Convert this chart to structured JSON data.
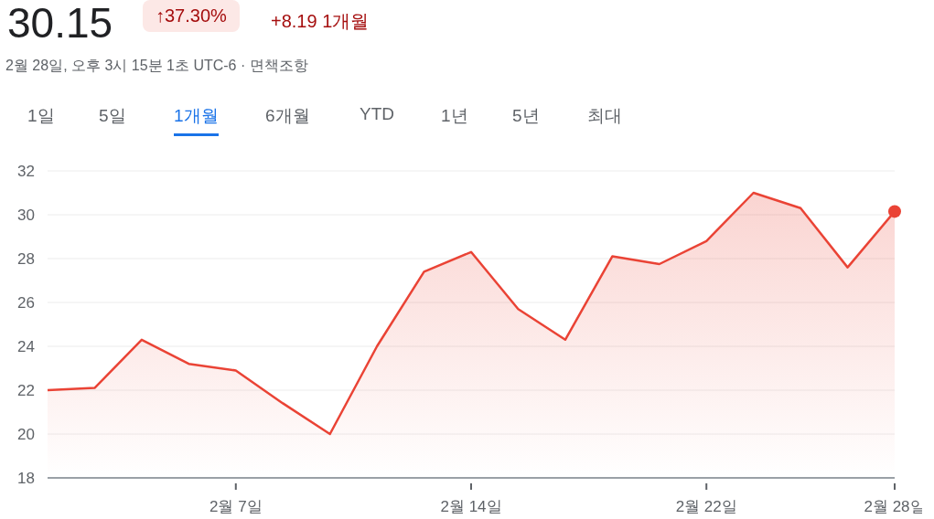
{
  "chart_data": {
    "type": "area",
    "title": "30.15",
    "subtitle": "2월 28일, 오후 3시 15분 1초 UTC-6 · 면책조항",
    "annotations": [
      "↑37.30%",
      "+8.19 1개월",
      "1일",
      "5일",
      "1개월",
      "6개월",
      "YTD",
      "1년",
      "5년",
      "최대"
    ],
    "categories": [
      null,
      null,
      null,
      null,
      "2월 7일",
      null,
      null,
      null,
      null,
      "2월 14일",
      null,
      null,
      null,
      null,
      "2월 22일",
      null,
      null,
      null,
      "2월 28일"
    ],
    "series": [
      {
        "color": "#ea4335",
        "values": [
          22.0,
          22.1,
          24.3,
          23.2,
          22.9,
          21.4,
          20.0,
          24.0,
          27.4,
          28.3,
          25.7,
          24.3,
          28.1,
          27.75,
          28.8,
          31.0,
          30.3,
          27.6,
          30.15
        ]
      }
    ],
    "ylim": [
      18,
      32
    ],
    "yticks": [
      18,
      20,
      22,
      24,
      26,
      28,
      30,
      32
    ],
    "grid": "y",
    "legend": false
  }
}
